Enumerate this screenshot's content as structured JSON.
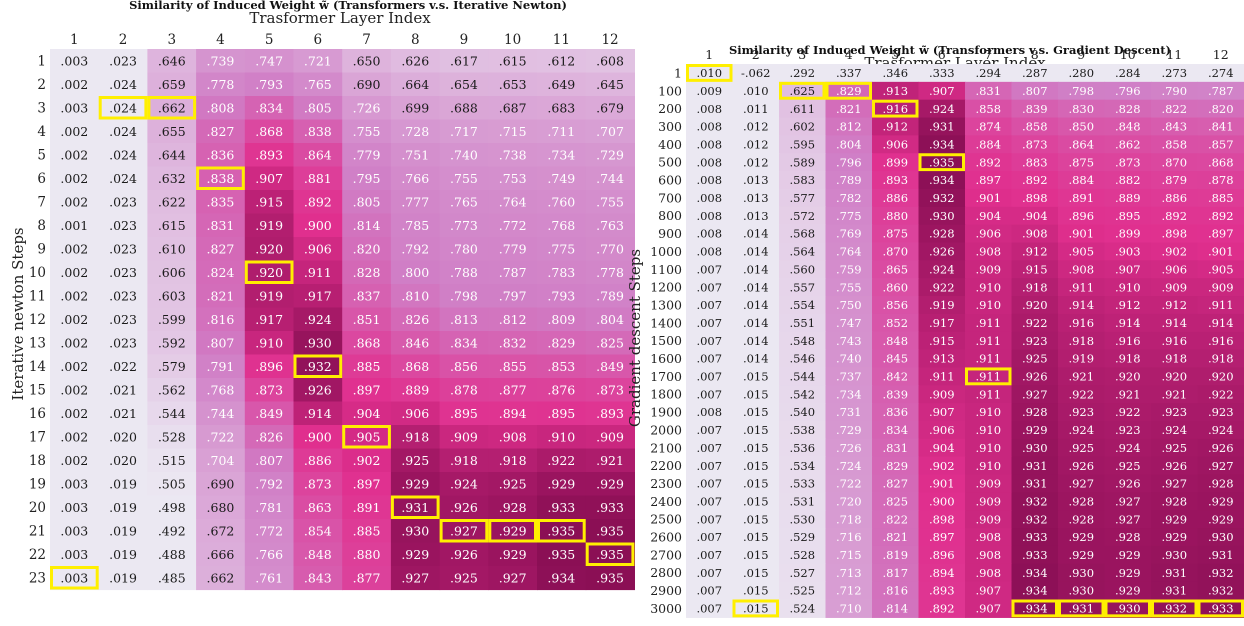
{
  "chart_data": [
    {
      "type": "heatmap",
      "title": "Similarity of Induced Weight w̃ (Transformers v.s. Iterative Newton)",
      "xlabel": "Trasformer Layer Index",
      "ylabel": "Iterative newton Steps",
      "x_ticks": [
        "1",
        "2",
        "3",
        "4",
        "5",
        "6",
        "7",
        "8",
        "9",
        "10",
        "11",
        "12"
      ],
      "y_ticks": [
        "1",
        "2",
        "3",
        "4",
        "5",
        "6",
        "7",
        "8",
        "9",
        "10",
        "11",
        "12",
        "13",
        "14",
        "15",
        "16",
        "17",
        "18",
        "19",
        "20",
        "21",
        "22",
        "23"
      ],
      "values": [
        [
          0.003,
          0.023,
          0.646,
          0.739,
          0.747,
          0.721,
          0.65,
          0.626,
          0.617,
          0.615,
          0.612,
          0.608
        ],
        [
          0.002,
          0.024,
          0.659,
          0.778,
          0.793,
          0.765,
          0.69,
          0.664,
          0.654,
          0.653,
          0.649,
          0.645
        ],
        [
          0.003,
          0.024,
          0.662,
          0.808,
          0.834,
          0.805,
          0.726,
          0.699,
          0.688,
          0.687,
          0.683,
          0.679
        ],
        [
          0.002,
          0.024,
          0.655,
          0.827,
          0.868,
          0.838,
          0.755,
          0.728,
          0.717,
          0.715,
          0.711,
          0.707
        ],
        [
          0.002,
          0.024,
          0.644,
          0.836,
          0.893,
          0.864,
          0.779,
          0.751,
          0.74,
          0.738,
          0.734,
          0.729
        ],
        [
          0.002,
          0.024,
          0.632,
          0.838,
          0.907,
          0.881,
          0.795,
          0.766,
          0.755,
          0.753,
          0.749,
          0.744
        ],
        [
          0.002,
          0.023,
          0.622,
          0.835,
          0.915,
          0.892,
          0.805,
          0.777,
          0.765,
          0.764,
          0.76,
          0.755
        ],
        [
          0.001,
          0.023,
          0.615,
          0.831,
          0.919,
          0.9,
          0.814,
          0.785,
          0.773,
          0.772,
          0.768,
          0.763
        ],
        [
          0.002,
          0.023,
          0.61,
          0.827,
          0.92,
          0.906,
          0.82,
          0.792,
          0.78,
          0.779,
          0.775,
          0.77
        ],
        [
          0.002,
          0.023,
          0.606,
          0.824,
          0.92,
          0.911,
          0.828,
          0.8,
          0.788,
          0.787,
          0.783,
          0.778
        ],
        [
          0.002,
          0.023,
          0.603,
          0.821,
          0.919,
          0.917,
          0.837,
          0.81,
          0.798,
          0.797,
          0.793,
          0.789
        ],
        [
          0.002,
          0.023,
          0.599,
          0.816,
          0.917,
          0.924,
          0.851,
          0.826,
          0.813,
          0.812,
          0.809,
          0.804
        ],
        [
          0.002,
          0.023,
          0.592,
          0.807,
          0.91,
          0.93,
          0.868,
          0.846,
          0.834,
          0.832,
          0.829,
          0.825
        ],
        [
          0.002,
          0.022,
          0.579,
          0.791,
          0.896,
          0.932,
          0.885,
          0.868,
          0.856,
          0.855,
          0.853,
          0.849
        ],
        [
          0.002,
          0.021,
          0.562,
          0.768,
          0.873,
          0.926,
          0.897,
          0.889,
          0.878,
          0.877,
          0.876,
          0.873
        ],
        [
          0.002,
          0.021,
          0.544,
          0.744,
          0.849,
          0.914,
          0.904,
          0.906,
          0.895,
          0.894,
          0.895,
          0.893
        ],
        [
          0.002,
          0.02,
          0.528,
          0.722,
          0.826,
          0.9,
          0.905,
          0.918,
          0.909,
          0.908,
          0.91,
          0.909
        ],
        [
          0.002,
          0.02,
          0.515,
          0.704,
          0.807,
          0.886,
          0.902,
          0.925,
          0.918,
          0.918,
          0.922,
          0.921
        ],
        [
          0.003,
          0.019,
          0.505,
          0.69,
          0.792,
          0.873,
          0.897,
          0.929,
          0.924,
          0.925,
          0.929,
          0.929
        ],
        [
          0.003,
          0.019,
          0.498,
          0.68,
          0.781,
          0.863,
          0.891,
          0.931,
          0.926,
          0.928,
          0.933,
          0.933
        ],
        [
          0.003,
          0.019,
          0.492,
          0.672,
          0.772,
          0.854,
          0.885,
          0.93,
          0.927,
          0.929,
          0.935,
          0.935
        ],
        [
          0.003,
          0.019,
          0.488,
          0.666,
          0.766,
          0.848,
          0.88,
          0.929,
          0.926,
          0.929,
          0.935,
          0.935
        ],
        [
          0.003,
          0.019,
          0.485,
          0.662,
          0.761,
          0.843,
          0.877,
          0.927,
          0.925,
          0.927,
          0.934,
          0.935
        ]
      ],
      "highlighted_cells": [
        [
          3,
          2
        ],
        [
          3,
          3
        ],
        [
          6,
          4
        ],
        [
          10,
          5
        ],
        [
          14,
          6
        ],
        [
          17,
          7
        ],
        [
          20,
          8
        ],
        [
          21,
          9
        ],
        [
          21,
          10
        ],
        [
          21,
          11
        ],
        [
          22,
          12
        ],
        [
          23,
          1
        ]
      ]
    },
    {
      "type": "heatmap",
      "title": "Similarity of Induced Weight w̃ (Transformers v.s. Gradient Descent)",
      "xlabel": "Trasformer Layer Index",
      "ylabel": "Gradient descent Steps",
      "x_ticks": [
        "1",
        "2",
        "3",
        "4",
        "5",
        "6",
        "7",
        "8",
        "9",
        "10",
        "11",
        "12"
      ],
      "y_ticks": [
        "1",
        "100",
        "200",
        "300",
        "400",
        "500",
        "600",
        "700",
        "800",
        "900",
        "1000",
        "1100",
        "1200",
        "1300",
        "1400",
        "1500",
        "1600",
        "1700",
        "1800",
        "1900",
        "2000",
        "2100",
        "2200",
        "2300",
        "2400",
        "2500",
        "2600",
        "2700",
        "2800",
        "2900",
        "3000"
      ],
      "values": [
        [
          0.01,
          -0.062,
          0.292,
          0.337,
          0.346,
          0.333,
          0.294,
          0.287,
          0.28,
          0.284,
          0.273,
          0.274
        ],
        [
          0.009,
          0.01,
          0.625,
          0.829,
          0.913,
          0.907,
          0.831,
          0.807,
          0.798,
          0.796,
          0.79,
          0.787
        ],
        [
          0.008,
          0.011,
          0.611,
          0.821,
          0.916,
          0.924,
          0.858,
          0.839,
          0.83,
          0.828,
          0.822,
          0.82
        ],
        [
          0.008,
          0.012,
          0.602,
          0.812,
          0.912,
          0.931,
          0.874,
          0.858,
          0.85,
          0.848,
          0.843,
          0.841
        ],
        [
          0.008,
          0.012,
          0.595,
          0.804,
          0.906,
          0.934,
          0.884,
          0.873,
          0.864,
          0.862,
          0.858,
          0.857
        ],
        [
          0.008,
          0.012,
          0.589,
          0.796,
          0.899,
          0.935,
          0.892,
          0.883,
          0.875,
          0.873,
          0.87,
          0.868
        ],
        [
          0.008,
          0.013,
          0.583,
          0.789,
          0.893,
          0.934,
          0.897,
          0.892,
          0.884,
          0.882,
          0.879,
          0.878
        ],
        [
          0.008,
          0.013,
          0.577,
          0.782,
          0.886,
          0.932,
          0.901,
          0.898,
          0.891,
          0.889,
          0.886,
          0.885
        ],
        [
          0.008,
          0.013,
          0.572,
          0.775,
          0.88,
          0.93,
          0.904,
          0.904,
          0.896,
          0.895,
          0.892,
          0.892
        ],
        [
          0.008,
          0.014,
          0.568,
          0.769,
          0.875,
          0.928,
          0.906,
          0.908,
          0.901,
          0.899,
          0.898,
          0.897
        ],
        [
          0.008,
          0.014,
          0.564,
          0.764,
          0.87,
          0.926,
          0.908,
          0.912,
          0.905,
          0.903,
          0.902,
          0.901
        ],
        [
          0.007,
          0.014,
          0.56,
          0.759,
          0.865,
          0.924,
          0.909,
          0.915,
          0.908,
          0.907,
          0.906,
          0.905
        ],
        [
          0.007,
          0.014,
          0.557,
          0.755,
          0.86,
          0.922,
          0.91,
          0.918,
          0.911,
          0.91,
          0.909,
          0.909
        ],
        [
          0.007,
          0.014,
          0.554,
          0.75,
          0.856,
          0.919,
          0.91,
          0.92,
          0.914,
          0.912,
          0.912,
          0.911
        ],
        [
          0.007,
          0.014,
          0.551,
          0.747,
          0.852,
          0.917,
          0.911,
          0.922,
          0.916,
          0.914,
          0.914,
          0.914
        ],
        [
          0.007,
          0.014,
          0.548,
          0.743,
          0.848,
          0.915,
          0.911,
          0.923,
          0.918,
          0.916,
          0.916,
          0.916
        ],
        [
          0.007,
          0.014,
          0.546,
          0.74,
          0.845,
          0.913,
          0.911,
          0.925,
          0.919,
          0.918,
          0.918,
          0.918
        ],
        [
          0.007,
          0.015,
          0.544,
          0.737,
          0.842,
          0.911,
          0.911,
          0.926,
          0.921,
          0.92,
          0.92,
          0.92
        ],
        [
          0.007,
          0.015,
          0.542,
          0.734,
          0.839,
          0.909,
          0.911,
          0.927,
          0.922,
          0.921,
          0.921,
          0.922
        ],
        [
          0.008,
          0.015,
          0.54,
          0.731,
          0.836,
          0.907,
          0.91,
          0.928,
          0.923,
          0.922,
          0.923,
          0.923
        ],
        [
          0.007,
          0.015,
          0.538,
          0.729,
          0.834,
          0.906,
          0.91,
          0.929,
          0.924,
          0.923,
          0.924,
          0.924
        ],
        [
          0.007,
          0.015,
          0.536,
          0.726,
          0.831,
          0.904,
          0.91,
          0.93,
          0.925,
          0.924,
          0.925,
          0.926
        ],
        [
          0.007,
          0.015,
          0.534,
          0.724,
          0.829,
          0.902,
          0.91,
          0.931,
          0.926,
          0.925,
          0.926,
          0.927
        ],
        [
          0.007,
          0.015,
          0.533,
          0.722,
          0.827,
          0.901,
          0.909,
          0.931,
          0.927,
          0.926,
          0.927,
          0.928
        ],
        [
          0.007,
          0.015,
          0.531,
          0.72,
          0.825,
          0.9,
          0.909,
          0.932,
          0.928,
          0.927,
          0.928,
          0.929
        ],
        [
          0.007,
          0.015,
          0.53,
          0.718,
          0.822,
          0.898,
          0.909,
          0.932,
          0.928,
          0.927,
          0.929,
          0.929
        ],
        [
          0.007,
          0.015,
          0.529,
          0.716,
          0.821,
          0.897,
          0.908,
          0.933,
          0.929,
          0.928,
          0.929,
          0.93
        ],
        [
          0.007,
          0.015,
          0.528,
          0.715,
          0.819,
          0.896,
          0.908,
          0.933,
          0.929,
          0.929,
          0.93,
          0.931
        ],
        [
          0.007,
          0.015,
          0.527,
          0.713,
          0.817,
          0.894,
          0.908,
          0.934,
          0.93,
          0.929,
          0.931,
          0.932
        ],
        [
          0.007,
          0.015,
          0.525,
          0.712,
          0.816,
          0.893,
          0.907,
          0.934,
          0.93,
          0.929,
          0.931,
          0.932
        ],
        [
          0.007,
          0.015,
          0.524,
          0.71,
          0.814,
          0.892,
          0.907,
          0.934,
          0.931,
          0.93,
          0.932,
          0.933
        ]
      ],
      "highlighted_cells": [
        [
          1,
          1
        ],
        [
          100,
          3
        ],
        [
          100,
          4
        ],
        [
          200,
          5
        ],
        [
          500,
          6
        ],
        [
          1700,
          7
        ],
        [
          3000,
          8
        ],
        [
          3000,
          9
        ],
        [
          3000,
          10
        ],
        [
          3000,
          11
        ],
        [
          3000,
          12
        ],
        [
          3000,
          2
        ]
      ]
    }
  ],
  "colors": {
    "low": "#ebe8f2",
    "mid": "#d07ec6",
    "high_pink": "#e02f8e",
    "max": "#8b0f55",
    "highlight": "#ffef00",
    "dark_text": "#1a1a1a",
    "light_text": "#ffffff"
  }
}
